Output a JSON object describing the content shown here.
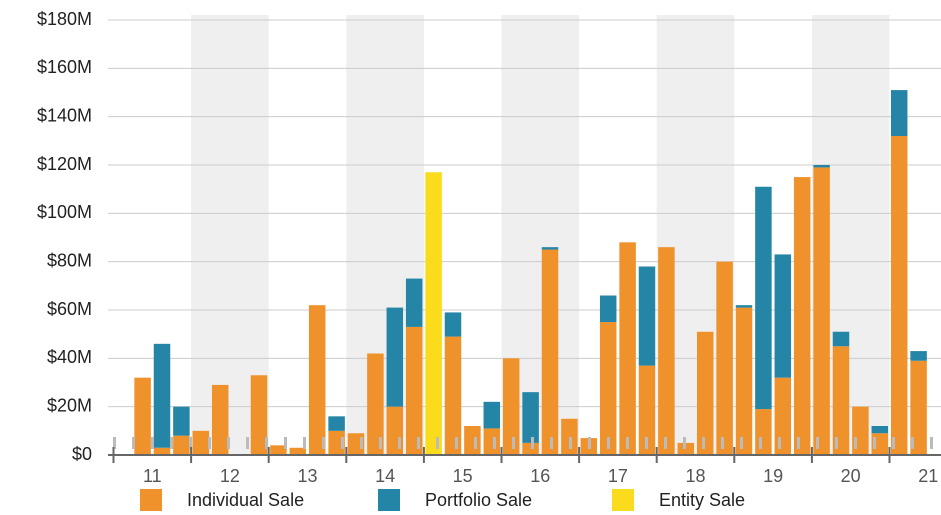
{
  "chart_data": {
    "type": "bar",
    "stacked": true,
    "categories": [
      null,
      null,
      null,
      null,
      null,
      null,
      null,
      null,
      null,
      null,
      null,
      null,
      null,
      null,
      null,
      null,
      null,
      null,
      null,
      null,
      null,
      null,
      null,
      null,
      null,
      null,
      null,
      null,
      null,
      null,
      null,
      null,
      null,
      null,
      null,
      null,
      null,
      null,
      null,
      null,
      null,
      null
    ],
    "year_labels": [
      "11",
      "12",
      "13",
      "14",
      "15",
      "16",
      "17",
      "18",
      "19",
      "20",
      "21"
    ],
    "series": [
      {
        "name": "Individual Sale",
        "color": "#f0922b",
        "values": [
          0,
          32,
          3,
          8,
          10,
          29,
          0,
          33,
          4,
          3,
          62,
          10,
          9,
          42,
          20,
          53,
          0,
          49,
          12,
          11,
          40,
          5,
          85,
          15,
          7,
          55,
          88,
          37,
          86,
          5,
          51,
          80,
          61,
          19,
          32,
          115,
          119,
          45,
          20,
          9,
          132,
          39
        ]
      },
      {
        "name": "Portfolio Sale",
        "color": "#2585a6",
        "values": [
          0,
          0,
          43,
          12,
          0,
          0,
          0,
          0,
          0,
          0,
          0,
          6,
          0,
          0,
          41,
          20,
          0,
          10,
          0,
          11,
          0,
          21,
          1,
          0,
          0,
          11,
          0,
          41,
          0,
          0,
          0,
          0,
          1,
          92,
          51,
          0,
          1,
          6,
          0,
          3,
          19,
          4
        ]
      },
      {
        "name": "Entity Sale",
        "color": "#fbdc1d",
        "values": [
          0,
          0,
          0,
          0,
          0,
          0,
          0,
          0,
          0,
          0,
          0,
          0,
          0,
          0,
          0,
          0,
          117,
          0,
          0,
          0,
          0,
          0,
          0,
          0,
          0,
          0,
          0,
          0,
          0,
          0,
          0,
          0,
          0,
          0,
          0,
          0,
          0,
          0,
          0,
          0,
          0,
          0
        ]
      }
    ],
    "ylim": [
      0,
      180
    ],
    "yticks": [
      {
        "value": 0,
        "label": "$0"
      },
      {
        "value": 20,
        "label": "$20M"
      },
      {
        "value": 40,
        "label": "$40M"
      },
      {
        "value": 60,
        "label": "$60M"
      },
      {
        "value": 80,
        "label": "$80M"
      },
      {
        "value": 100,
        "label": "$100M"
      },
      {
        "value": 120,
        "label": "$120M"
      },
      {
        "value": 140,
        "label": "$140M"
      },
      {
        "value": 160,
        "label": "$160M"
      },
      {
        "value": 180,
        "label": "$180M"
      }
    ],
    "grid": true,
    "legend": "bottom"
  }
}
